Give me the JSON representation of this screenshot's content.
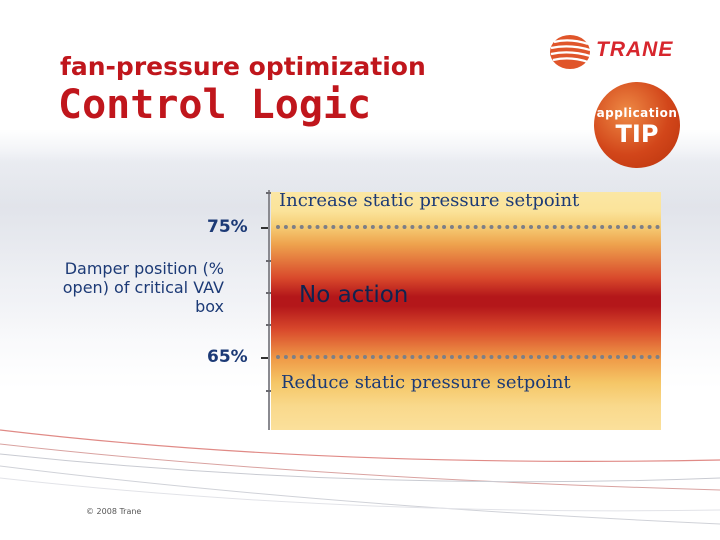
{
  "header": {
    "subtitle": "fan-pressure optimization",
    "title": "Control Logic"
  },
  "brand": {
    "logo_text": "TRANE",
    "logo_icon": "trane-swirl-icon",
    "accent_color": "#c0161c"
  },
  "badge": {
    "small_text": "application",
    "big_text": "TIP"
  },
  "diagram": {
    "axis_title": "Damper position (% open) of critical VAV box",
    "upper_threshold": "75%",
    "lower_threshold": "65%",
    "zones": {
      "top": "Increase static pressure setpoint",
      "middle": "No action",
      "bottom": "Reduce static pressure setpoint"
    }
  },
  "footer": {
    "copyright": "© 2008 Trane"
  }
}
